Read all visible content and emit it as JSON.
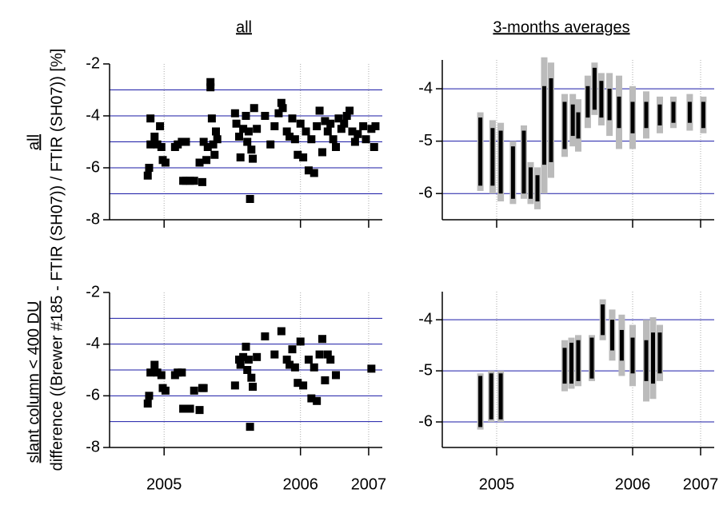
{
  "column_titles": [
    "all",
    "3-months averages"
  ],
  "row_labels": [
    "all",
    "slant column < 400 DU"
  ],
  "ylabel": "difference ((Brewer #185 - FTIR (SH07)) / FTIR (SH07)) [%]",
  "chart_data": [
    {
      "type": "scatter",
      "color": "#000000",
      "grid_color": "#1a1aa6",
      "xlim": [
        2005.1,
        2007.1
      ],
      "xticks": [
        2005.5,
        2006.5,
        2007.0
      ],
      "ylim": [
        -8,
        -2
      ],
      "yticks": [
        -8,
        -6,
        -4,
        -2
      ],
      "ygrid": [
        -7,
        -6,
        -5,
        -4,
        -3
      ],
      "x": [
        2005.38,
        2005.39,
        2005.4,
        2005.4,
        2005.43,
        2005.45,
        2005.47,
        2005.48,
        2005.49,
        2005.51,
        2005.58,
        2005.6,
        2005.63,
        2005.66,
        2005.64,
        2005.66,
        2005.69,
        2005.72,
        2005.76,
        2005.78,
        2005.79,
        2005.81,
        2005.82,
        2005.84,
        2005.84,
        2005.85,
        2005.86,
        2005.87,
        2005.88,
        2005.89,
        2006.02,
        2006.03,
        2006.05,
        2006.06,
        2006.08,
        2006.1,
        2006.11,
        2006.12,
        2006.13,
        2006.14,
        2006.15,
        2006.16,
        2006.18,
        2006.24,
        2006.28,
        2006.31,
        2006.34,
        2006.36,
        2006.37,
        2006.4,
        2006.42,
        2006.44,
        2006.46,
        2006.48,
        2006.5,
        2006.52,
        2006.54,
        2006.56,
        2006.58,
        2006.6,
        2006.62,
        2006.64,
        2006.66,
        2006.68,
        2006.7,
        2006.72,
        2006.74,
        2006.76,
        2006.78,
        2006.8,
        2006.82,
        2006.84,
        2006.86,
        2006.88,
        2006.9,
        2006.92,
        2006.96,
        2006.98,
        2007.02,
        2007.04,
        2007.05
      ],
      "values": [
        -6.3,
        -6.0,
        -4.1,
        -5.1,
        -4.8,
        -5.1,
        -4.4,
        -5.2,
        -5.7,
        -5.8,
        -5.2,
        -5.1,
        -5.0,
        -5.0,
        -6.5,
        -6.5,
        -6.5,
        -6.5,
        -5.8,
        -6.55,
        -5.0,
        -5.7,
        -5.2,
        -2.7,
        -2.9,
        -4.1,
        -5.1,
        -5.5,
        -4.6,
        -4.9,
        -3.9,
        -4.3,
        -4.8,
        -5.6,
        -4.5,
        -4.0,
        -5.0,
        -4.6,
        -7.2,
        -5.3,
        -5.65,
        -3.7,
        -4.5,
        -4.0,
        -5.1,
        -4.4,
        -3.9,
        -3.5,
        -3.7,
        -4.6,
        -4.8,
        -4.1,
        -4.9,
        -5.5,
        -4.3,
        -5.6,
        -4.6,
        -6.1,
        -4.9,
        -6.2,
        -4.4,
        -3.8,
        -5.4,
        -4.2,
        -4.6,
        -4.3,
        -4.9,
        -5.2,
        -4.1,
        -4.5,
        -4.3,
        -4.0,
        -3.8,
        -4.6,
        -5.0,
        -4.7,
        -4.4,
        -4.9,
        -4.5,
        -5.2,
        -4.4
      ]
    },
    {
      "type": "errorbar",
      "color": "#000000",
      "color2": "#bbbbbb",
      "grid_color": "#1a1aa6",
      "xlim": [
        2005.1,
        2007.1
      ],
      "xticks": [
        2005.5,
        2006.5,
        2007.0
      ],
      "ylim": [
        -6.5,
        -3.45
      ],
      "yticks": [
        -6,
        -5,
        -4
      ],
      "ygrid": [
        -6,
        -5,
        -4
      ],
      "x": [
        2005.38,
        2005.47,
        2005.53,
        2005.62,
        2005.7,
        2005.75,
        2005.8,
        2005.85,
        2005.9,
        2006.0,
        2006.06,
        2006.1,
        2006.17,
        2006.22,
        2006.27,
        2006.33,
        2006.4,
        2006.5,
        2006.6,
        2006.7,
        2006.8,
        2006.92,
        2007.02
      ],
      "values": [
        -5.2,
        -5.3,
        -5.4,
        -5.6,
        -5.4,
        -5.8,
        -5.9,
        -4.7,
        -4.6,
        -4.7,
        -4.6,
        -4.7,
        -4.25,
        -4.0,
        -4.2,
        -4.3,
        -4.45,
        -4.55,
        -4.5,
        -4.5,
        -4.45,
        -4.45,
        -4.5
      ],
      "errors": [
        0.65,
        0.55,
        0.6,
        0.5,
        0.6,
        0.3,
        0.25,
        0.75,
        0.8,
        0.45,
        0.3,
        0.25,
        0.3,
        0.4,
        0.35,
        0.3,
        0.3,
        0.3,
        0.25,
        0.2,
        0.2,
        0.2,
        0.25
      ],
      "errors2": [
        0.75,
        0.7,
        0.75,
        0.6,
        0.7,
        0.4,
        0.4,
        1.3,
        1.1,
        0.6,
        0.5,
        0.5,
        0.5,
        0.5,
        0.5,
        0.6,
        0.7,
        0.6,
        0.45,
        0.35,
        0.3,
        0.35,
        0.35
      ]
    },
    {
      "type": "scatter",
      "color": "#000000",
      "grid_color": "#1a1aa6",
      "xlim": [
        2005.1,
        2007.1
      ],
      "xticks": [
        {
          "value": 2005.5,
          "label": "2005"
        },
        {
          "value": 2006.5,
          "label": "2006"
        },
        {
          "value": 2007.0,
          "label": "2007"
        }
      ],
      "ylim": [
        -8,
        -2
      ],
      "yticks": [
        -8,
        -6,
        -4,
        -2
      ],
      "ygrid": [
        -7,
        -6,
        -5,
        -4,
        -3
      ],
      "x": [
        2005.38,
        2005.39,
        2005.4,
        2005.43,
        2005.45,
        2005.48,
        2005.49,
        2005.51,
        2005.58,
        2005.6,
        2005.63,
        2005.64,
        2005.66,
        2005.69,
        2005.72,
        2005.76,
        2005.78,
        2005.79,
        2006.02,
        2006.05,
        2006.06,
        2006.08,
        2006.1,
        2006.11,
        2006.12,
        2006.13,
        2006.14,
        2006.15,
        2006.18,
        2006.24,
        2006.31,
        2006.36,
        2006.4,
        2006.42,
        2006.44,
        2006.46,
        2006.48,
        2006.5,
        2006.52,
        2006.56,
        2006.58,
        2006.6,
        2006.62,
        2006.64,
        2006.66,
        2006.68,
        2006.7,
        2006.72,
        2006.76,
        2007.02
      ],
      "values": [
        -6.3,
        -6.0,
        -5.1,
        -4.8,
        -5.1,
        -5.2,
        -5.7,
        -5.8,
        -5.2,
        -5.1,
        -5.1,
        -6.5,
        -6.5,
        -6.5,
        -5.8,
        -6.55,
        -5.7,
        -5.7,
        -5.6,
        -4.6,
        -4.8,
        -4.5,
        -4.1,
        -5.0,
        -4.6,
        -7.2,
        -5.3,
        -5.65,
        -4.5,
        -3.7,
        -4.4,
        -3.5,
        -4.6,
        -4.8,
        -4.2,
        -4.9,
        -5.5,
        -3.9,
        -5.6,
        -4.6,
        -6.1,
        -4.9,
        -6.2,
        -4.4,
        -3.8,
        -5.4,
        -4.4,
        -4.6,
        -5.2,
        -4.95
      ]
    },
    {
      "type": "errorbar",
      "color": "#000000",
      "color2": "#bbbbbb",
      "grid_color": "#1a1aa6",
      "xlim": [
        2005.1,
        2007.1
      ],
      "xticks": [
        {
          "value": 2005.5,
          "label": "2005"
        },
        {
          "value": 2006.5,
          "label": "2006"
        },
        {
          "value": 2007.0,
          "label": "2007"
        }
      ],
      "ylim": [
        -6.5,
        -3.45
      ],
      "yticks": [
        -6,
        -5,
        -4
      ],
      "ygrid": [
        -6,
        -5,
        -4
      ],
      "x": [
        2005.38,
        2005.46,
        2005.53,
        2006.0,
        2006.05,
        2006.1,
        2006.2,
        2006.28,
        2006.35,
        2006.42,
        2006.5,
        2006.6,
        2006.65,
        2006.7
      ],
      "values": [
        -5.6,
        -5.5,
        -5.5,
        -4.9,
        -4.85,
        -4.8,
        -4.75,
        -4.0,
        -4.3,
        -4.5,
        -4.7,
        -4.8,
        -4.75,
        -4.65
      ],
      "errors": [
        0.5,
        0.45,
        0.45,
        0.35,
        0.4,
        0.4,
        0.4,
        0.3,
        0.3,
        0.3,
        0.35,
        0.4,
        0.5,
        0.4
      ],
      "errors2": [
        0.55,
        0.5,
        0.5,
        0.5,
        0.5,
        0.5,
        0.45,
        0.4,
        0.5,
        0.6,
        0.6,
        0.8,
        0.8,
        0.55
      ]
    }
  ]
}
